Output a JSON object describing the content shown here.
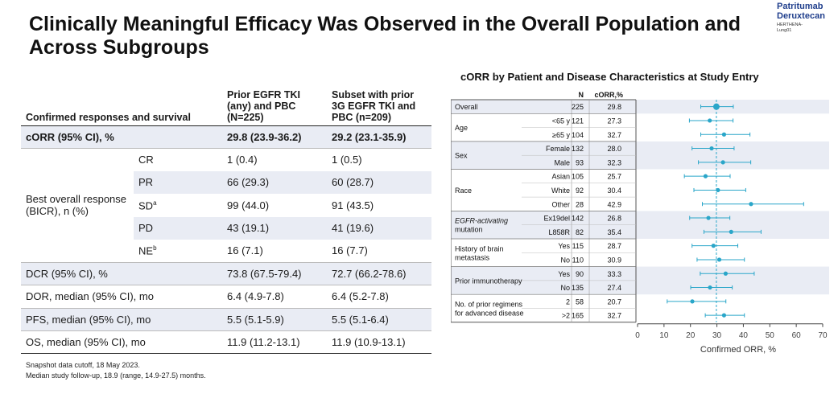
{
  "slide": {
    "title": "Clinically Meaningful Efficacy Was Observed in the Overall Population and Across Subgroups",
    "logo_line1": "Patritumab",
    "logo_line2": "Deruxtecan",
    "logo_line3": "HERTHENA-",
    "logo_line4": "Lung01"
  },
  "table": {
    "header_label": "Confirmed responses and survival",
    "col1": "Prior EGFR TKI (any) and PBC (N=225)",
    "col2": "Subset with prior 3G EGFR TKI and PBC (n=209)",
    "corr": {
      "label": "cORR (95% CI), %",
      "v1": "29.8 (23.9-36.2)",
      "v2": "29.2 (23.1-35.9)"
    },
    "bor_label": "Best overall response (BICR), n (%)",
    "bor": [
      {
        "cat": "CR",
        "sup": "",
        "v1": "1 (0.4)",
        "v2": "1 (0.5)"
      },
      {
        "cat": "PR",
        "sup": "",
        "v1": "66 (29.3)",
        "v2": "60 (28.7)"
      },
      {
        "cat": "SD",
        "sup": "a",
        "v1": "99 (44.0)",
        "v2": "91 (43.5)"
      },
      {
        "cat": "PD",
        "sup": "",
        "v1": "43 (19.1)",
        "v2": "41 (19.6)"
      },
      {
        "cat": "NE",
        "sup": "b",
        "v1": "16 (7.1)",
        "v2": "16 (7.7)"
      }
    ],
    "rows": [
      {
        "label": "DCR (95% CI), %",
        "v1": "73.8 (67.5-79.4)",
        "v2": "72.7 (66.2-78.6)"
      },
      {
        "label": "DOR, median (95% CI), mo",
        "v1": "6.4 (4.9-7.8)",
        "v2": "6.4 (5.2-7.8)"
      },
      {
        "label": "PFS, median (95% CI), mo",
        "v1": "5.5 (5.1-5.9)",
        "v2": "5.5 (5.1-6.4)"
      },
      {
        "label": "OS, median (95% CI), mo",
        "v1": "11.9 (11.2-13.1)",
        "v2": "11.9 (10.9-13.1)"
      }
    ]
  },
  "footnotes": {
    "line1": "Snapshot data cutoff, 18 May 2023.",
    "line2": "Median study follow-up, 18.9 (range, 14.9-27.5) months."
  },
  "colors": {
    "marker": "#2aa6c9",
    "band": "#e9ecf4",
    "title_blue": "#1f3e8c",
    "ref_line": "#2aa6c9"
  },
  "chart_data": {
    "type": "scatter",
    "title": "cORR by Patient and Disease Characteristics at Study Entry",
    "xlabel": "Confirmed ORR, %",
    "xlim": [
      0,
      70
    ],
    "xticks": [
      0,
      10,
      20,
      30,
      40,
      50,
      60,
      70
    ],
    "reference_line": 29.8,
    "col_n": "N",
    "col_corr": "cORR,%",
    "rows": [
      {
        "group": "Overall",
        "sub": "",
        "n": "225",
        "corr": 29.8,
        "lo": 23.9,
        "hi": 36.2
      },
      {
        "group": "Age",
        "sub": "<65 y",
        "n": "121",
        "corr": 27.3,
        "lo": 19.6,
        "hi": 36.1
      },
      {
        "group": "",
        "sub": "≥65 y",
        "n": "104",
        "corr": 32.7,
        "lo": 23.9,
        "hi": 42.5
      },
      {
        "group": "Sex",
        "sub": "Female",
        "n": "132",
        "corr": 28.0,
        "lo": 20.6,
        "hi": 36.5
      },
      {
        "group": "",
        "sub": "Male",
        "n": "93",
        "corr": 32.3,
        "lo": 23.0,
        "hi": 42.8
      },
      {
        "group": "Race",
        "sub": "Asian",
        "n": "105",
        "corr": 25.7,
        "lo": 17.7,
        "hi": 35.0
      },
      {
        "group": "",
        "sub": "White",
        "n": "92",
        "corr": 30.4,
        "lo": 21.3,
        "hi": 40.9
      },
      {
        "group": "",
        "sub": "Other",
        "n": "28",
        "corr": 42.9,
        "lo": 24.5,
        "hi": 62.8
      },
      {
        "group": "EGFR-activating",
        "group2": "mutation",
        "sub": "Ex19del",
        "n": "142",
        "corr": 26.8,
        "lo": 19.7,
        "hi": 34.9
      },
      {
        "group": "",
        "sub": "L858R",
        "n": "82",
        "corr": 35.4,
        "lo": 25.1,
        "hi": 46.7
      },
      {
        "group": "History of brain",
        "group2": "metastasis",
        "sub": "Yes",
        "n": "115",
        "corr": 28.7,
        "lo": 20.6,
        "hi": 37.9
      },
      {
        "group": "",
        "sub": "No",
        "n": "110",
        "corr": 30.9,
        "lo": 22.5,
        "hi": 40.4
      },
      {
        "group": "Prior immunotherapy",
        "sub": "Yes",
        "n": "90",
        "corr": 33.3,
        "lo": 23.7,
        "hi": 44.1
      },
      {
        "group": "",
        "sub": "No",
        "n": "135",
        "corr": 27.4,
        "lo": 20.1,
        "hi": 35.8
      },
      {
        "group": "No. of prior regimens",
        "group2": "for advanced disease",
        "sub": "2",
        "n": "58",
        "corr": 20.7,
        "lo": 11.2,
        "hi": 33.4
      },
      {
        "group": "",
        "sub": ">2",
        "n": "165",
        "corr": 32.7,
        "lo": 25.6,
        "hi": 40.4
      }
    ]
  }
}
